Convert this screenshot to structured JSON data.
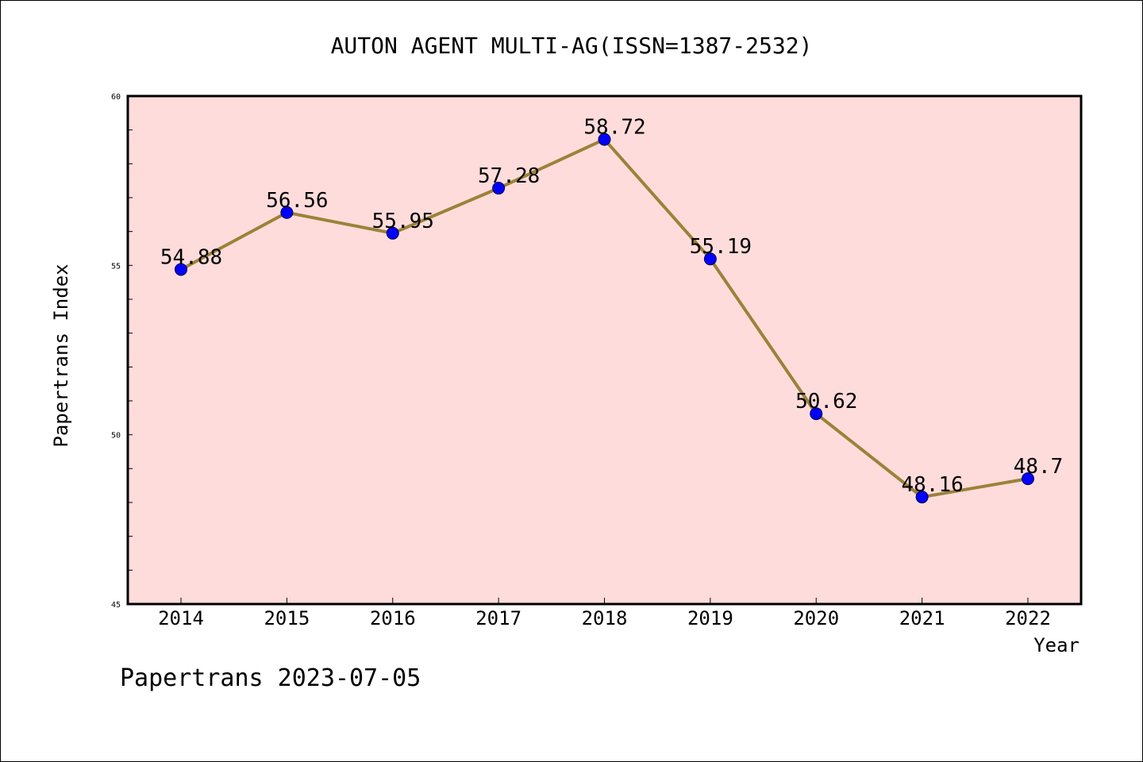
{
  "chart_data": {
    "type": "line",
    "title": "AUTON AGENT MULTI-AG(ISSN=1387-2532)",
    "xlabel": "Year",
    "ylabel": "Papertrans Index",
    "categories": [
      "2014",
      "2015",
      "2016",
      "2017",
      "2018",
      "2019",
      "2020",
      "2021",
      "2022"
    ],
    "values": [
      54.88,
      56.56,
      55.95,
      57.28,
      58.72,
      55.19,
      50.62,
      48.16,
      48.7
    ],
    "data_labels": [
      "54.88",
      "56.56",
      "55.95",
      "57.28",
      "58.72",
      "55.19",
      "50.62",
      "48.16",
      "48.7"
    ],
    "ylim": [
      45,
      60
    ],
    "yticks": [
      45,
      50,
      55,
      60
    ],
    "ytick_labels": [
      "45",
      "50",
      "55",
      "60"
    ],
    "grid": false,
    "colors": {
      "plot_background": "#ffdcdc",
      "line": "#9b8238",
      "marker": "#0000ff"
    }
  },
  "footer": {
    "text": "Papertrans 2023-07-05"
  }
}
